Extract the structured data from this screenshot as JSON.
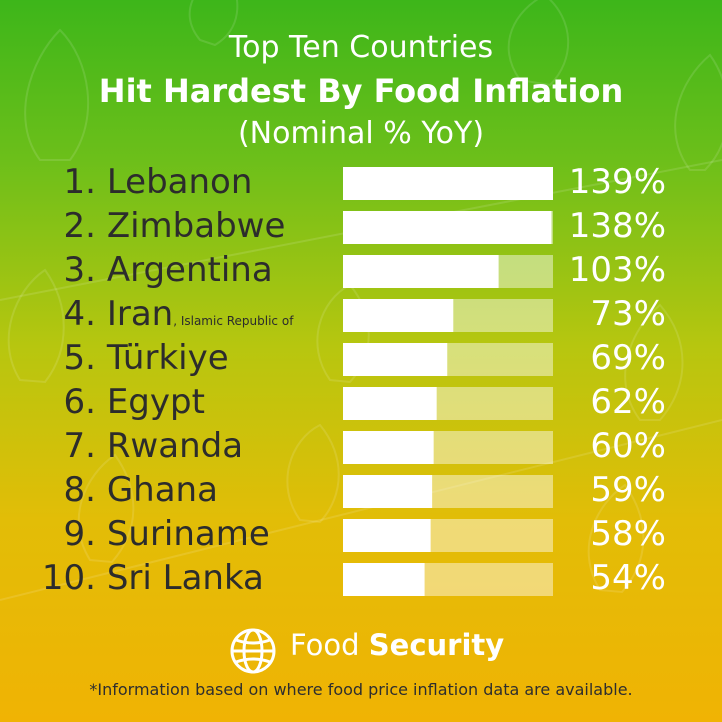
{
  "title": {
    "line1": "Top Ten Countries",
    "line2": "Hit Hardest By Food Inflation",
    "line3": "(Nominal % YoY)"
  },
  "chart_data": {
    "type": "bar",
    "orientation": "horizontal",
    "title": "Top Ten Countries Hit Hardest By Food Inflation (Nominal % YoY)",
    "xlim": [
      0,
      139
    ],
    "rows": [
      {
        "rank": "1.",
        "country": "Lebanon",
        "note": "",
        "value": 139,
        "label": "139%"
      },
      {
        "rank": "2.",
        "country": "Zimbabwe",
        "note": "",
        "value": 138,
        "label": "138%"
      },
      {
        "rank": "3.",
        "country": "Argentina",
        "note": "",
        "value": 103,
        "label": "103%"
      },
      {
        "rank": "4.",
        "country": "Iran",
        "note": ", Islamic Republic of",
        "value": 73,
        "label": "73%"
      },
      {
        "rank": "5.",
        "country": "Türkiye",
        "note": "",
        "value": 69,
        "label": "69%"
      },
      {
        "rank": "6.",
        "country": "Egypt",
        "note": "",
        "value": 62,
        "label": "62%"
      },
      {
        "rank": "7.",
        "country": "Rwanda",
        "note": "",
        "value": 60,
        "label": "60%"
      },
      {
        "rank": "8.",
        "country": "Ghana",
        "note": "",
        "value": 59,
        "label": "59%"
      },
      {
        "rank": "9.",
        "country": "Suriname",
        "note": "",
        "value": 58,
        "label": "58%"
      },
      {
        "rank": "10.",
        "country": "Sri Lanka",
        "note": "",
        "value": 54,
        "label": "54%"
      }
    ]
  },
  "colors": {
    "bar_fill": "#ffffff",
    "bar_track": "rgba(255,255,255,0.45)",
    "text_dark": "#2c2c2c",
    "text_light": "#ffffff"
  },
  "brand": {
    "icon": "globe-icon",
    "text_regular": "Food ",
    "text_bold": "Security"
  },
  "footnote": "*Information based on where food price inflation data are available."
}
